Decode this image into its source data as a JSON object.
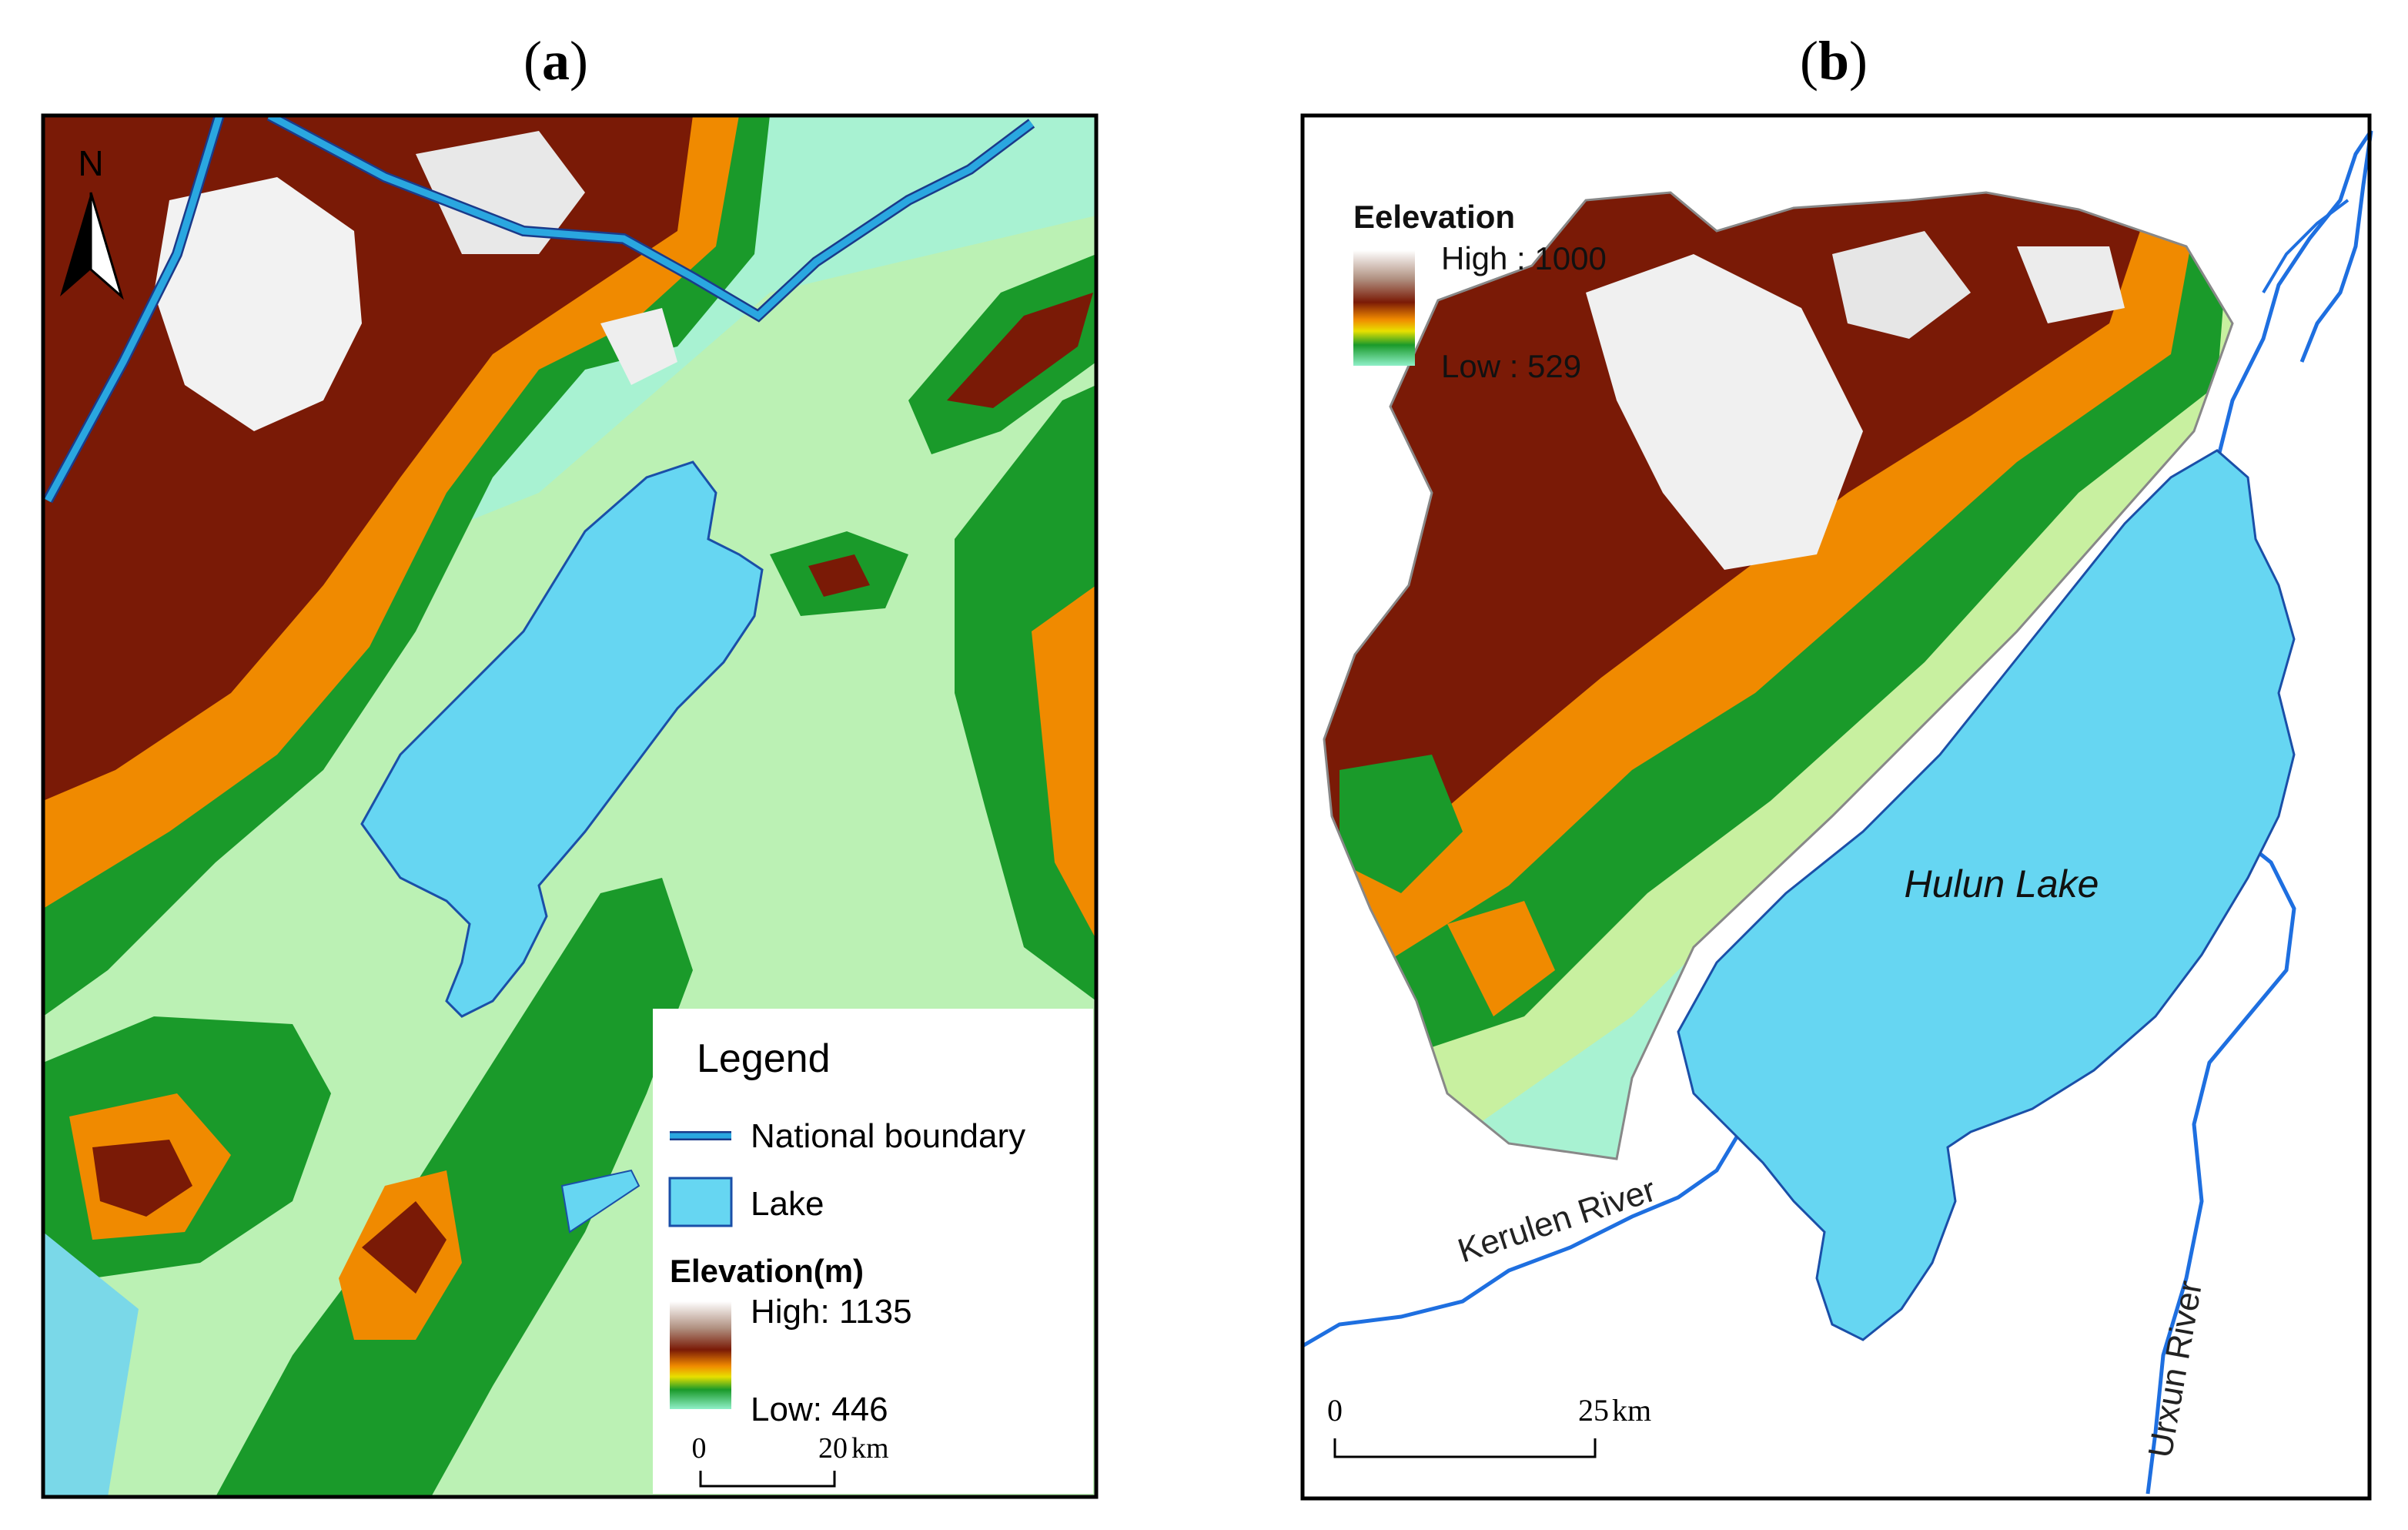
{
  "panel_a": {
    "label_open": "(",
    "label_letter": "a",
    "label_close": ")",
    "north": "N",
    "legend": {
      "title": "Legend",
      "boundary_label": "National boundary",
      "lake_label": "Lake",
      "elevation_title": "Elevation(m)",
      "high": "High: 1135",
      "low": "Low: 446"
    },
    "scale": {
      "zero": "0",
      "end": "20",
      "unit": "km"
    }
  },
  "panel_b": {
    "label_open": "(",
    "label_letter": "b",
    "label_close": ")",
    "legend": {
      "title": "Eelevation",
      "high": "High : 1000",
      "low": "Low : 529"
    },
    "lake_name": "Hulun Lake",
    "river_kerulen": "Kerulen River",
    "river_urxun": "Urxun River",
    "scale": {
      "zero": "0",
      "end": "25",
      "unit": "km"
    }
  },
  "colors": {
    "lake": "#66d6f2",
    "lake_outline": "#1a4fa8",
    "river": "#1e6fe0",
    "boundary": "#2aa7e0",
    "low_plain": "#8ff0c8",
    "green": "#1a9a2a",
    "orange": "#f08a00",
    "brown": "#7a1a06",
    "peak": "#f4f4f4"
  }
}
